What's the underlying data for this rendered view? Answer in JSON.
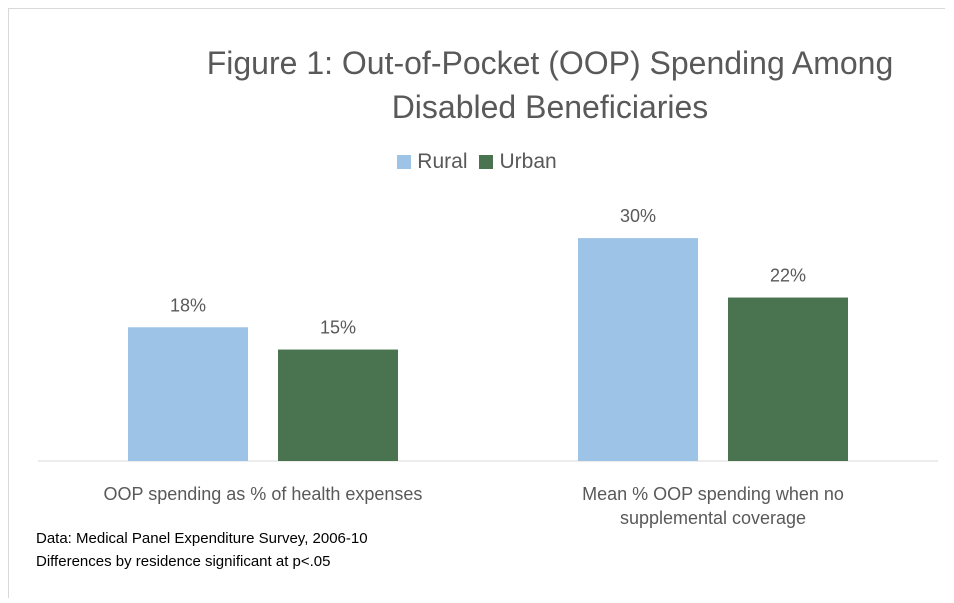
{
  "chart_data": {
    "type": "bar",
    "title_line1": "Figure 1: Out-of-Pocket (OOP) Spending Among",
    "title_line2": "Disabled Beneficiaries",
    "categories": [
      "OOP spending as % of health expenses",
      "Mean % OOP spending when no supplemental coverage"
    ],
    "category_lines": [
      [
        "OOP spending as % of health expenses"
      ],
      [
        "Mean % OOP spending when no",
        "supplemental coverage"
      ]
    ],
    "series": [
      {
        "name": "Rural",
        "values": [
          18,
          30
        ],
        "labels": [
          "18%",
          "30%"
        ],
        "color": "#9dc3e6"
      },
      {
        "name": "Urban",
        "values": [
          15,
          22
        ],
        "labels": [
          "15%",
          "22%"
        ],
        "color": "#4a7350"
      }
    ],
    "ylim": [
      0,
      35
    ],
    "legend_position": "top",
    "grid": false
  },
  "notes": {
    "line1": "Data: Medical Panel Expenditure Survey, 2006-10",
    "line2": "Differences by residence significant at p<.05"
  }
}
